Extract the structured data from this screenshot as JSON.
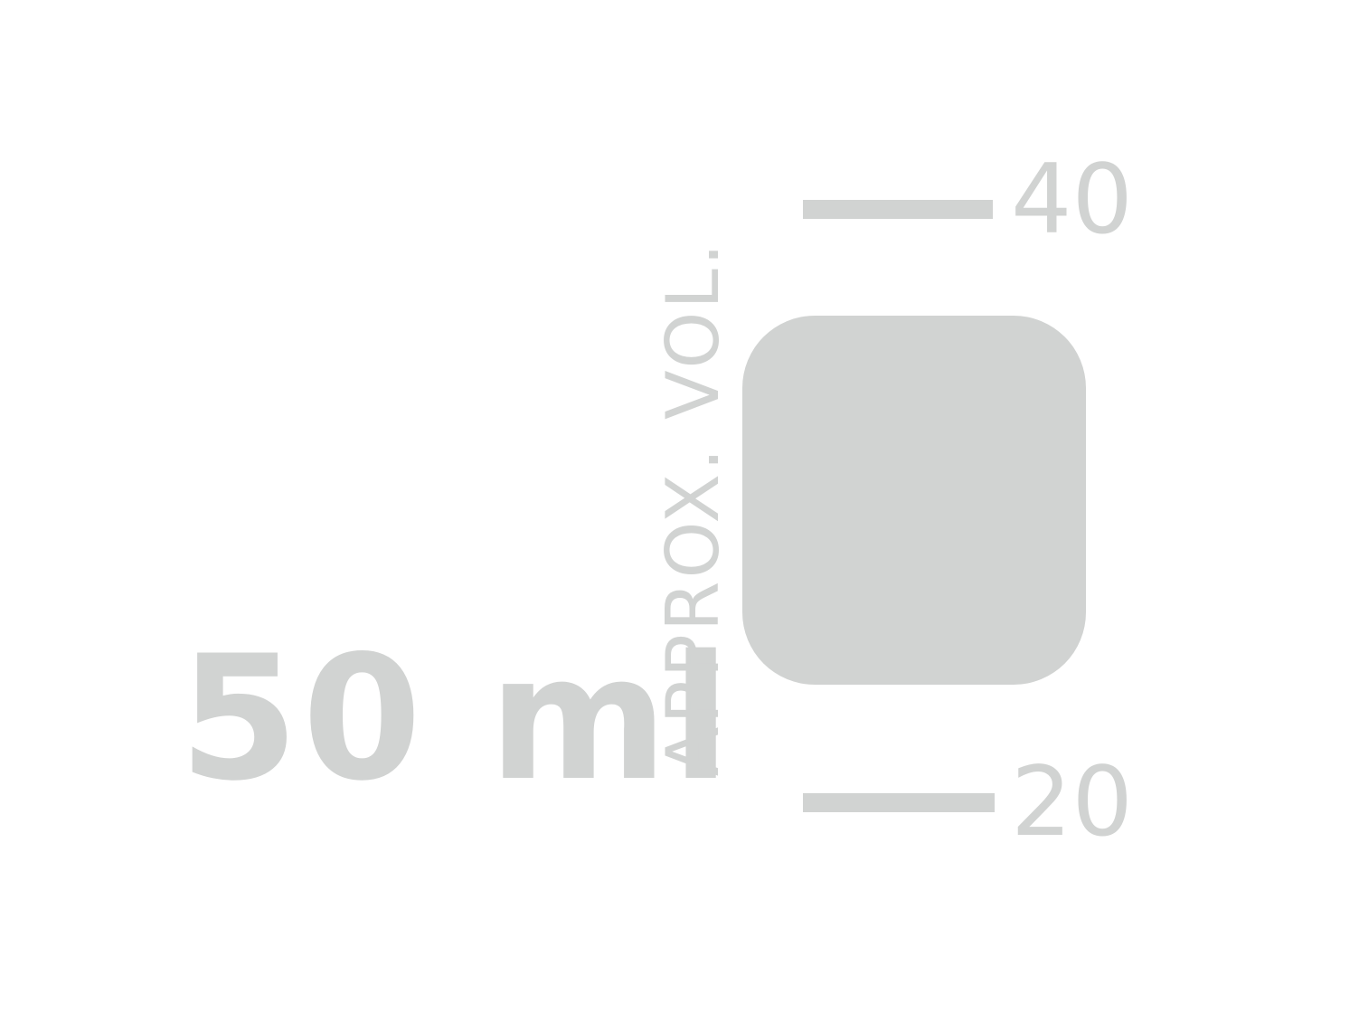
{
  "colors": {
    "background": "#ffffff",
    "marking": "#d1d3d2"
  },
  "capacity_label": "50 ml",
  "approx_label": "APPROX. VOL.",
  "scale": {
    "upper_value": "40",
    "lower_value": "20"
  }
}
